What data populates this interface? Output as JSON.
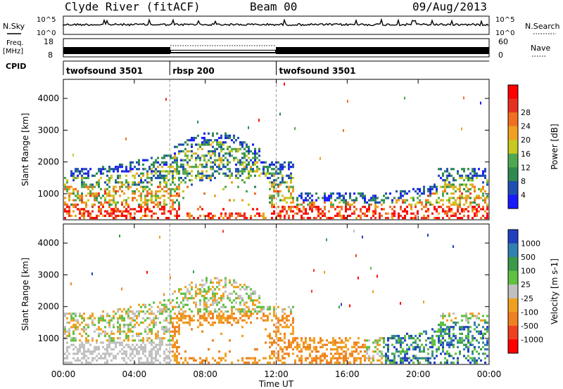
{
  "header": {
    "station": "Clyde River (fitACF)",
    "beam": "Beam 00",
    "date": "09/Aug/2013"
  },
  "top_panels": {
    "nsky_label": "N.Sky",
    "nsearch_label": "N.Search",
    "nsky_ticks": [
      "10^5",
      "10^0"
    ],
    "nsearch_ticks": [
      "10^5",
      "10^0"
    ],
    "freq_label_line1": "Freq.",
    "freq_label_line2": "[MHz]",
    "freq_ticks": [
      "18",
      "8"
    ],
    "nave_label": "Nave",
    "nave_ticks": [
      "60",
      "0"
    ],
    "cpid_label": "CPID",
    "cpid_segments": [
      {
        "label": "twofsound 3501",
        "start": 0,
        "end": 6
      },
      {
        "label": "rbsp 200",
        "start": 6,
        "end": 12
      },
      {
        "label": "twofsound 3501",
        "start": 12,
        "end": 24
      }
    ]
  },
  "chart_data": [
    {
      "type": "heatmap",
      "title": "Power",
      "ylabel": "Slant Range [km]",
      "xlabel": "",
      "x_range_hours": [
        0,
        24
      ],
      "ylim": [
        180,
        4600
      ],
      "y_ticks": [
        "1000",
        "2000",
        "3000",
        "4000"
      ],
      "y_tick_values": [
        1000,
        2000,
        3000,
        4000
      ],
      "colorbar_label": "Power [dB]",
      "colorbar_ticks": [
        "4",
        "8",
        "12",
        "16",
        "20",
        "24",
        "28"
      ],
      "colorbar_colors": [
        "#1a1aff",
        "#1f4fb0",
        "#2f8a4f",
        "#4fa84f",
        "#c8c820",
        "#f0a020",
        "#f07020",
        "#e83020",
        "#ff0000"
      ]
    },
    {
      "type": "heatmap",
      "title": "Velocity",
      "ylabel": "Slant Range [km]",
      "xlabel": "Time UT",
      "x_range_hours": [
        0,
        24
      ],
      "ylim": [
        180,
        4600
      ],
      "y_ticks": [
        "1000",
        "2000",
        "3000",
        "4000"
      ],
      "y_tick_values": [
        1000,
        2000,
        3000,
        4000
      ],
      "x_ticks": [
        "00:00",
        "04:00",
        "08:00",
        "12:00",
        "16:00",
        "20:00",
        "00:00"
      ],
      "x_tick_values": [
        0,
        4,
        8,
        12,
        16,
        20,
        24
      ],
      "colorbar_label": "Velocity [m s-1]",
      "colorbar_ticks": [
        "1000",
        "500",
        "100",
        "25",
        "-25",
        "-100",
        "-500",
        "-1000"
      ],
      "colorbar_colors": [
        "#2040c0",
        "#3080b0",
        "#3a9a4a",
        "#60c040",
        "#c0c0c0",
        "#f0a020",
        "#f08020",
        "#f04020",
        "#ff0000"
      ]
    }
  ]
}
